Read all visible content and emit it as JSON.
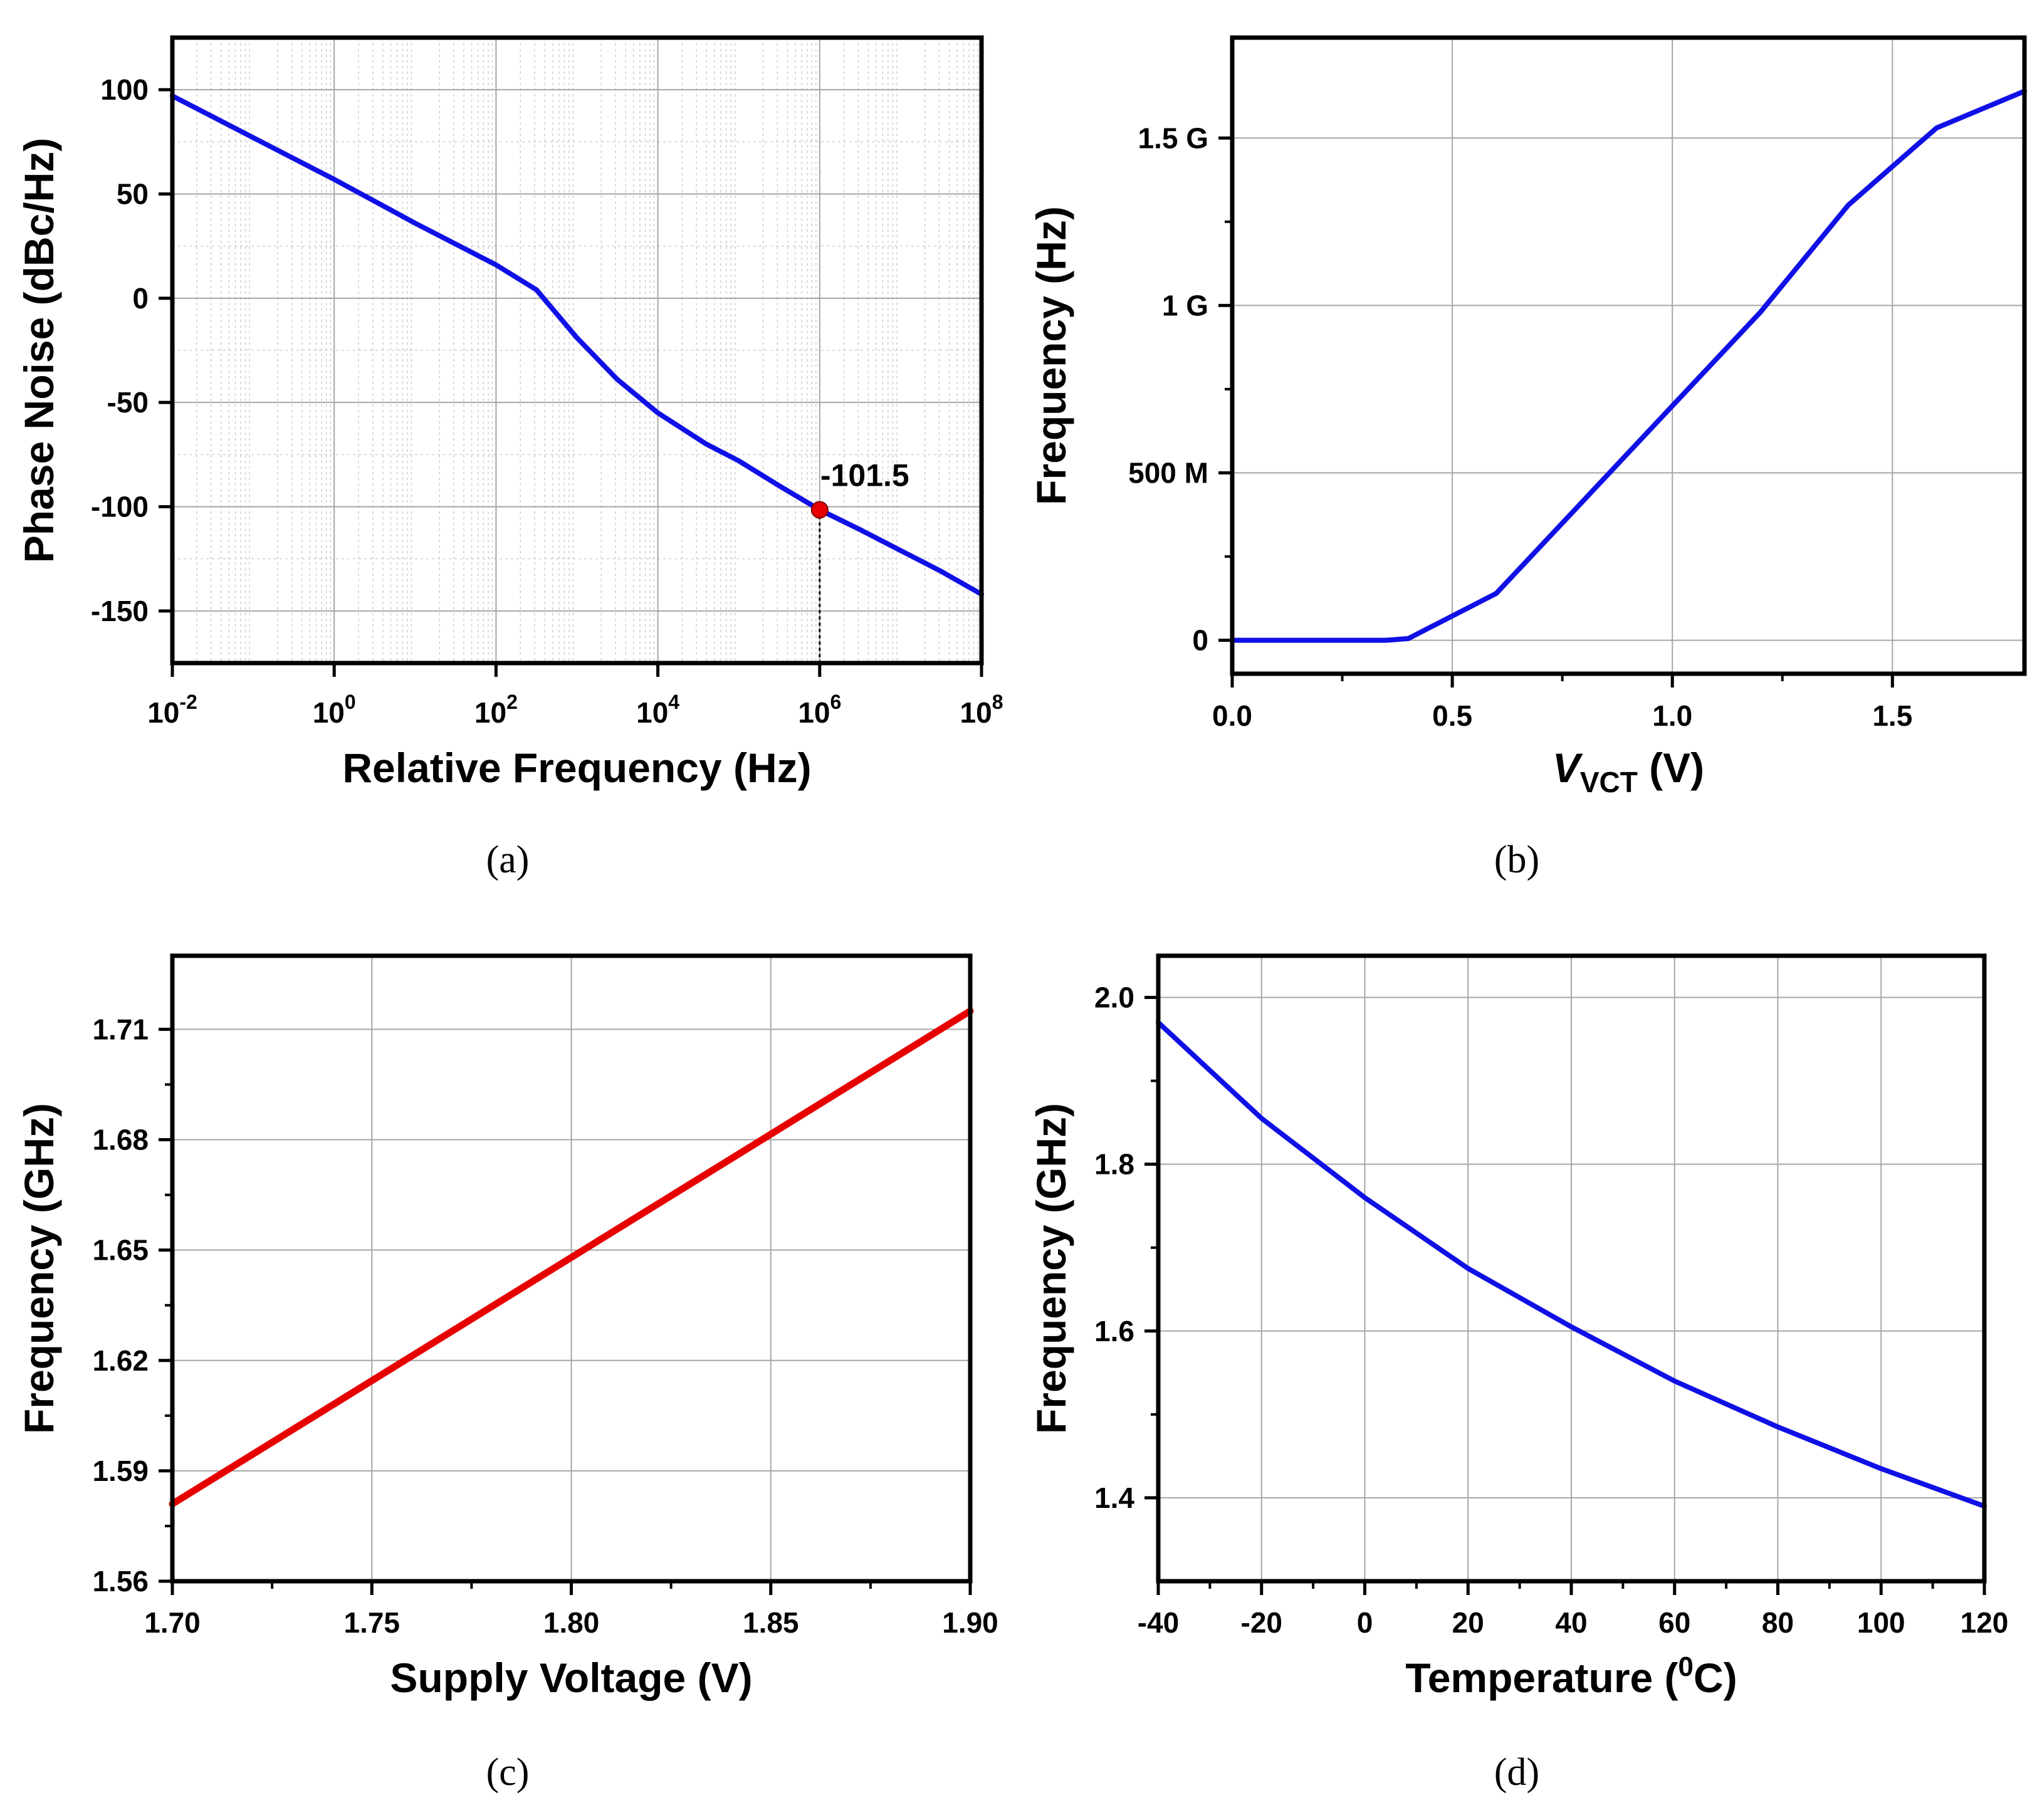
{
  "chart_data": [
    {
      "type": "line",
      "panel": "a",
      "caption": "(a)",
      "xlabel": "Relative Frequency (Hz)",
      "ylabel": "Phase Noise (dBc/Hz)",
      "xscale": "log",
      "xlim_exp": [
        -2,
        8
      ],
      "ylim": [
        -175,
        125
      ],
      "x_ticks": [
        {
          "base": "10",
          "exp": "-2",
          "value": -2
        },
        {
          "base": "10",
          "exp": "0",
          "value": 0
        },
        {
          "base": "10",
          "exp": "2",
          "value": 2
        },
        {
          "base": "10",
          "exp": "4",
          "value": 4
        },
        {
          "base": "10",
          "exp": "6",
          "value": 6
        },
        {
          "base": "10",
          "exp": "8",
          "value": 8
        }
      ],
      "y_ticks": [
        {
          "label": "100",
          "value": 100
        },
        {
          "label": "50",
          "value": 50
        },
        {
          "label": "0",
          "value": 0
        },
        {
          "label": "-50",
          "value": -50
        },
        {
          "label": "-100",
          "value": -100
        },
        {
          "label": "-150",
          "value": -150
        }
      ],
      "series": [
        {
          "name": "Phase Noise",
          "color": "#1010e6",
          "x_exp": [
            -2,
            -1,
            0,
            1,
            2,
            2.5,
            3,
            3.5,
            4,
            4.6,
            5,
            5.5,
            6,
            6.5,
            7,
            7.5,
            8
          ],
          "values": [
            97,
            77,
            57,
            36,
            16,
            4,
            -19,
            -39,
            -55,
            -70,
            -78,
            -90,
            -101.5,
            -111,
            -121,
            -131,
            -142
          ]
        }
      ],
      "marker": {
        "x_exp": 6,
        "y": -101.5,
        "label": "-101.5",
        "color": "#e60000"
      },
      "grid": true
    },
    {
      "type": "line",
      "panel": "b",
      "caption": "(b)",
      "xlabel_main": "V",
      "xlabel_sub": "VCT",
      "xlabel_unit": " (V)",
      "ylabel": "Frequency (Hz)",
      "xlim": [
        0,
        1.8
      ],
      "ylim": [
        -100000000,
        1800000000
      ],
      "x_ticks": [
        {
          "label": "0.0",
          "value": 0
        },
        {
          "label": "0.5",
          "value": 0.5
        },
        {
          "label": "1.0",
          "value": 1.0
        },
        {
          "label": "1.5",
          "value": 1.5
        }
      ],
      "y_ticks": [
        {
          "label": "0",
          "value": 0
        },
        {
          "label": "500 M",
          "value": 500000000
        },
        {
          "label": "1 G",
          "value": 1000000000
        },
        {
          "label": "1.5 G",
          "value": 1500000000
        }
      ],
      "series": [
        {
          "name": "Frequency",
          "color": "#1010e6",
          "x": [
            0,
            0.35,
            0.4,
            0.6,
            0.8,
            1.0,
            1.2,
            1.4,
            1.6,
            1.8
          ],
          "values": [
            0,
            0,
            5000000,
            140000000,
            420000000,
            700000000,
            980000000,
            1300000000,
            1530000000,
            1640000000
          ]
        }
      ],
      "grid": true
    },
    {
      "type": "line",
      "panel": "c",
      "caption": "(c)",
      "xlabel": "Supply Voltage (V)",
      "ylabel": "Frequency (GHz)",
      "xlim": [
        1.7,
        1.9
      ],
      "ylim": [
        1.56,
        1.73
      ],
      "x_ticks": [
        {
          "label": "1.70",
          "value": 1.7
        },
        {
          "label": "1.75",
          "value": 1.75
        },
        {
          "label": "1.80",
          "value": 1.8
        },
        {
          "label": "1.85",
          "value": 1.85
        },
        {
          "label": "1.90",
          "value": 1.9
        }
      ],
      "y_ticks": [
        {
          "label": "1.56",
          "value": 1.56
        },
        {
          "label": "1.59",
          "value": 1.59
        },
        {
          "label": "1.62",
          "value": 1.62
        },
        {
          "label": "1.65",
          "value": 1.65
        },
        {
          "label": "1.68",
          "value": 1.68
        },
        {
          "label": "1.71",
          "value": 1.71
        }
      ],
      "series": [
        {
          "name": "Frequency",
          "color": "#e60000",
          "x": [
            1.7,
            1.9
          ],
          "values": [
            1.581,
            1.715
          ]
        }
      ],
      "grid": true
    },
    {
      "type": "line",
      "panel": "d",
      "caption": "(d)",
      "xlabel_main": "Temperature (",
      "xlabel_sup": "0",
      "xlabel_unit": "C)",
      "ylabel": "Frequency (GHz)",
      "xlim": [
        -40,
        120
      ],
      "ylim": [
        1.3,
        2.05
      ],
      "x_ticks": [
        {
          "label": "-40",
          "value": -40
        },
        {
          "label": "-20",
          "value": -20
        },
        {
          "label": "0",
          "value": 0
        },
        {
          "label": "20",
          "value": 20
        },
        {
          "label": "40",
          "value": 40
        },
        {
          "label": "60",
          "value": 60
        },
        {
          "label": "80",
          "value": 80
        },
        {
          "label": "100",
          "value": 100
        },
        {
          "label": "120",
          "value": 120
        }
      ],
      "y_ticks": [
        {
          "label": "1.4",
          "value": 1.4
        },
        {
          "label": "1.6",
          "value": 1.6
        },
        {
          "label": "1.8",
          "value": 1.8
        },
        {
          "label": "2.0",
          "value": 2.0
        }
      ],
      "series": [
        {
          "name": "Frequency",
          "color": "#1010e6",
          "x": [
            -40,
            -20,
            0,
            20,
            40,
            60,
            80,
            100,
            120
          ],
          "values": [
            1.97,
            1.855,
            1.76,
            1.675,
            1.605,
            1.54,
            1.485,
            1.435,
            1.39
          ]
        }
      ],
      "grid": true
    }
  ]
}
